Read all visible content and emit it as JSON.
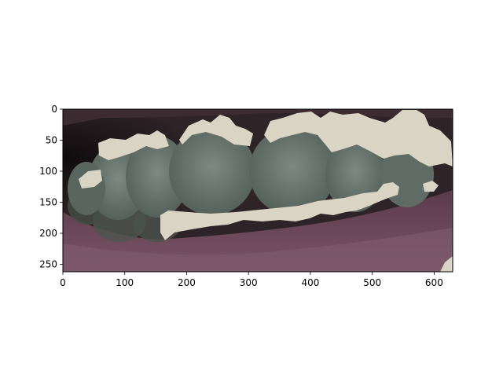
{
  "figure": {
    "background": "#ffffff",
    "image_description_colors": {
      "background_dark": "#2a1f22",
      "gum_pink": "#6e4a5c",
      "teeth": "#6d7a72",
      "highlight_mask": "#d8d3c2"
    },
    "x_axis": {
      "range": [
        0,
        630
      ],
      "ticks": [
        {
          "value": 0,
          "label": "0"
        },
        {
          "value": 100,
          "label": "100"
        },
        {
          "value": 200,
          "label": "200"
        },
        {
          "value": 300,
          "label": "300"
        },
        {
          "value": 400,
          "label": "400"
        },
        {
          "value": 500,
          "label": "500"
        },
        {
          "value": 600,
          "label": "600"
        }
      ]
    },
    "y_axis": {
      "range": [
        0,
        262
      ],
      "inverted": true,
      "ticks": [
        {
          "value": 0,
          "label": "0"
        },
        {
          "value": 50,
          "label": "50"
        },
        {
          "value": 100,
          "label": "100"
        },
        {
          "value": 150,
          "label": "150"
        },
        {
          "value": 200,
          "label": "200"
        },
        {
          "value": 250,
          "label": "250"
        }
      ]
    }
  }
}
